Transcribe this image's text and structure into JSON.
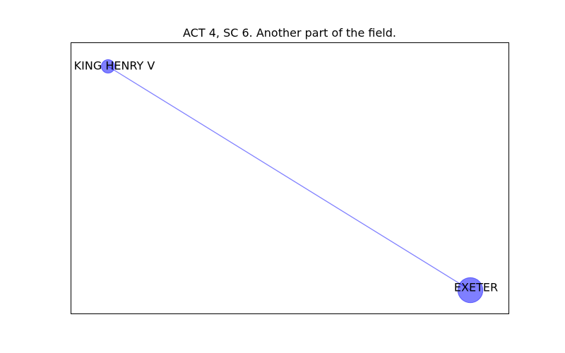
{
  "title": "ACT 4, SC 6. Another part of the field.",
  "colors": {
    "node_fill": "#0000ff",
    "node_opacity": 0.5,
    "edge": "#0000ff",
    "frame": "#000000"
  },
  "graph": {
    "nodes": [
      {
        "id": "king-henry-v",
        "label": "KING HENRY V",
        "weight": 1
      },
      {
        "id": "exeter",
        "label": "EXETER",
        "weight": 3.5
      }
    ],
    "edges": [
      {
        "source": "king-henry-v",
        "target": "exeter"
      }
    ]
  }
}
